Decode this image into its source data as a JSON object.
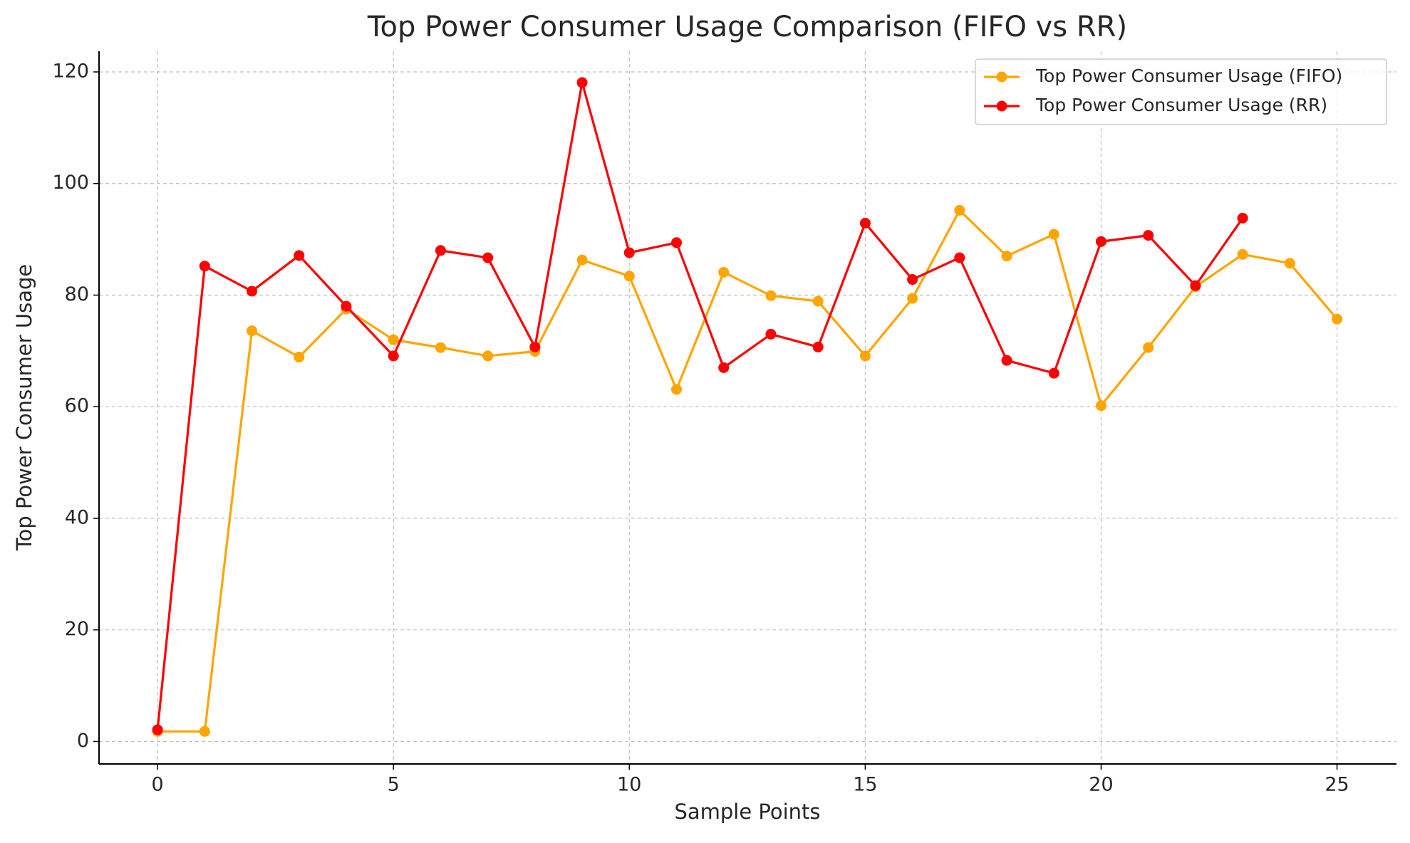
{
  "chart_data": {
    "type": "line",
    "title": "Top Power Consumer Usage Comparison (FIFO vs RR)",
    "x_label": "Sample Points",
    "y_label": "Top Power Consumer Usage",
    "x": [
      0,
      1,
      2,
      3,
      4,
      5,
      6,
      7,
      8,
      9,
      10,
      11,
      12,
      13,
      14,
      15,
      16,
      17,
      18,
      19,
      20,
      21,
      22,
      23,
      24,
      25
    ],
    "series": [
      {
        "name": "Top Power Consumer Usage (FIFO)",
        "color": "#ffa500",
        "values": [
          1.8,
          1.8,
          73.6,
          68.9,
          77.5,
          72.0,
          70.6,
          69.1,
          69.9,
          86.3,
          83.4,
          63.1,
          84.1,
          79.9,
          78.9,
          69.1,
          79.4,
          95.2,
          87.0,
          90.9,
          60.2,
          70.6,
          81.5,
          87.3,
          85.7,
          75.7
        ]
      },
      {
        "name": "Top Power Consumer Usage (RR)",
        "color": "#ff0000",
        "values": [
          2.1,
          85.2,
          80.7,
          87.1,
          78.0,
          69.1,
          88.0,
          86.7,
          70.7,
          118.1,
          87.6,
          89.4,
          67.0,
          73.0,
          70.7,
          92.9,
          82.8,
          86.7,
          68.3,
          66.0,
          89.6,
          90.7,
          81.7,
          93.8,
          null,
          null
        ]
      }
    ],
    "xlim": [
      -1.24,
      26.26
    ],
    "xticks": [
      0,
      5,
      10,
      15,
      20,
      25
    ],
    "ylim": [
      -4.03,
      123.7
    ],
    "yticks": [
      0,
      20,
      40,
      60,
      80,
      100,
      120
    ],
    "grid": true,
    "legend": "upper right"
  }
}
